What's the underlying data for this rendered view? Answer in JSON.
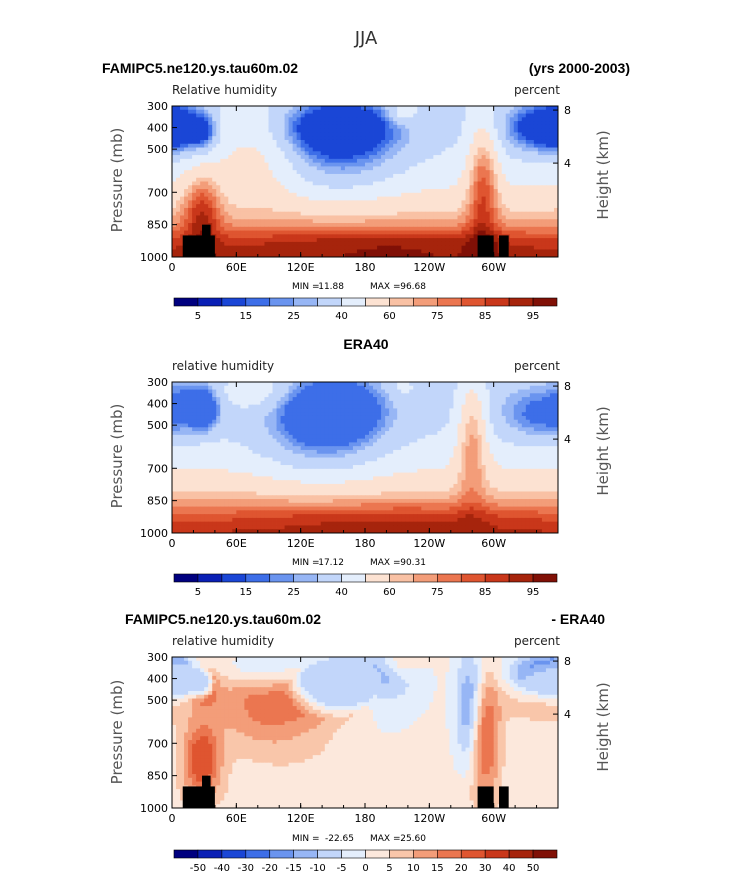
{
  "figure": {
    "main_title": "JJA"
  },
  "colors": {
    "rh_levels": [
      "#00007f",
      "#0a1fb5",
      "#1a46d6",
      "#3d6ee8",
      "#6a94ef",
      "#97b6f5",
      "#c2d6fa",
      "#e4eefc",
      "#fce2d2",
      "#f9c1a4",
      "#f39d79",
      "#eb7650",
      "#df5530",
      "#c9371a",
      "#a6240c",
      "#801006"
    ],
    "diff_levels": [
      "#00007f",
      "#0a1fb5",
      "#1a46d6",
      "#3d6ee8",
      "#6a94ef",
      "#97b6f5",
      "#c2d6fa",
      "#e4eefc",
      "#fce8dc",
      "#f9c6aa",
      "#f39d79",
      "#eb7650",
      "#df5530",
      "#c9371a",
      "#a6240c",
      "#801006"
    ]
  },
  "chart_data": [
    {
      "type": "heatmap",
      "left_title": "FAMIPC5.ne120.ys.tau60m.02",
      "right_title": "(yrs 2000-2003)",
      "variable_label": "Relative humidity",
      "units_label": "percent",
      "xlabel": "",
      "ylabel": "Pressure (mb)",
      "ylabel_right": "Height (km)",
      "x_ticks": [
        "0",
        "60E",
        "120E",
        "180",
        "120W",
        "60W"
      ],
      "x_tick_values": [
        0,
        60,
        120,
        180,
        240,
        300
      ],
      "xlim": [
        0,
        360
      ],
      "y_ticks": [
        "300",
        "400",
        "500",
        "700",
        "850",
        "1000"
      ],
      "y_tick_values": [
        300,
        400,
        500,
        700,
        850,
        1000
      ],
      "ylim": [
        1000,
        300
      ],
      "y_right_ticks": [
        "8",
        "4"
      ],
      "y_right_tick_values": [
        8,
        4
      ],
      "min_label": "MIN =",
      "min_value": "11.88",
      "max_label": "MAX =",
      "max_value": "96.68",
      "colorbar_labels": [
        "5",
        "15",
        "25",
        "40",
        "60",
        "75",
        "85",
        "95"
      ],
      "colorbar_levels": [
        5,
        10,
        15,
        20,
        25,
        30,
        40,
        50,
        60,
        65,
        70,
        75,
        80,
        85,
        90,
        95
      ],
      "palette": "rh",
      "topography": true,
      "field": "model"
    },
    {
      "type": "heatmap",
      "left_title": "",
      "center_title": "ERA40",
      "right_title": "",
      "variable_label": "relative humidity",
      "units_label": "percent",
      "xlabel": "",
      "ylabel": "Pressure (mb)",
      "ylabel_right": "Height (km)",
      "x_ticks": [
        "0",
        "60E",
        "120E",
        "180",
        "120W",
        "60W"
      ],
      "x_tick_values": [
        0,
        60,
        120,
        180,
        240,
        300
      ],
      "xlim": [
        0,
        360
      ],
      "y_ticks": [
        "300",
        "400",
        "500",
        "700",
        "850",
        "1000"
      ],
      "y_tick_values": [
        300,
        400,
        500,
        700,
        850,
        1000
      ],
      "ylim": [
        1000,
        300
      ],
      "y_right_ticks": [
        "8",
        "4"
      ],
      "y_right_tick_values": [
        8,
        4
      ],
      "min_label": "MIN =",
      "min_value": "17.12",
      "max_label": "MAX =",
      "max_value": "90.31",
      "colorbar_labels": [
        "5",
        "15",
        "25",
        "40",
        "60",
        "75",
        "85",
        "95"
      ],
      "colorbar_levels": [
        5,
        10,
        15,
        20,
        25,
        30,
        40,
        50,
        60,
        65,
        70,
        75,
        80,
        85,
        90,
        95
      ],
      "palette": "rh",
      "topography": false,
      "field": "obs"
    },
    {
      "type": "heatmap",
      "left_title": "FAMIPC5.ne120.ys.tau60m.02",
      "right_title": "- ERA40",
      "variable_label": "relative humidity",
      "units_label": "percent",
      "xlabel": "",
      "ylabel": "Pressure (mb)",
      "ylabel_right": "Height (km)",
      "x_ticks": [
        "0",
        "60E",
        "120E",
        "180",
        "120W",
        "60W"
      ],
      "x_tick_values": [
        0,
        60,
        120,
        180,
        240,
        300
      ],
      "xlim": [
        0,
        360
      ],
      "y_ticks": [
        "300",
        "400",
        "500",
        "700",
        "850",
        "1000"
      ],
      "y_tick_values": [
        300,
        400,
        500,
        700,
        850,
        1000
      ],
      "ylim": [
        1000,
        300
      ],
      "y_right_ticks": [
        "8",
        "4"
      ],
      "y_right_tick_values": [
        8,
        4
      ],
      "min_label": "MIN =",
      "min_value": "-22.65",
      "max_label": "MAX =",
      "max_value": "25.60",
      "colorbar_labels": [
        "-50",
        "-40",
        "-30",
        "-20",
        "-15",
        "-10",
        "-5",
        "0",
        "5",
        "10",
        "15",
        "20",
        "30",
        "40",
        "50"
      ],
      "colorbar_levels": [
        -50,
        -40,
        -30,
        -20,
        -15,
        -10,
        -5,
        0,
        5,
        10,
        15,
        20,
        30,
        40,
        50
      ],
      "palette": "diff",
      "topography": true,
      "field": "diff"
    }
  ]
}
